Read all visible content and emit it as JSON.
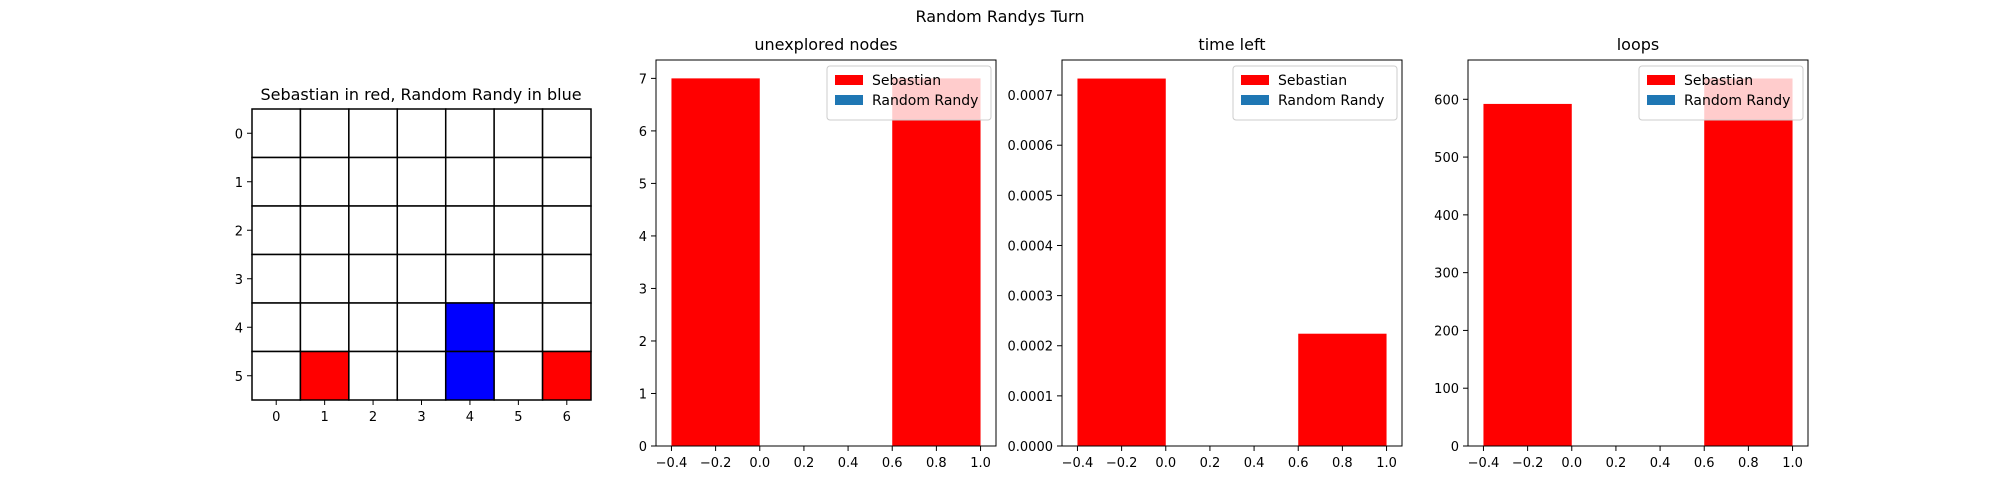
{
  "figure": {
    "suptitle": "Random Randys Turn"
  },
  "board": {
    "title": "Sebastian in red, Random Randy in blue",
    "rows": 6,
    "cols": 7,
    "x_ticks": [
      "0",
      "1",
      "2",
      "3",
      "4",
      "5",
      "6"
    ],
    "y_ticks": [
      "0",
      "1",
      "2",
      "3",
      "4",
      "5"
    ],
    "player_colors": {
      "sebastian": "#ff0000",
      "random_randy": "#0000ff",
      "empty": "#ffffff"
    },
    "cells": [
      {
        "row": 5,
        "col": 1,
        "player": "sebastian"
      },
      {
        "row": 4,
        "col": 4,
        "player": "random_randy"
      },
      {
        "row": 5,
        "col": 4,
        "player": "random_randy"
      },
      {
        "row": 5,
        "col": 6,
        "player": "sebastian"
      }
    ]
  },
  "chart_data": [
    {
      "type": "bar",
      "title": "unexplored nodes",
      "series": [
        {
          "name": "Sebastian",
          "color": "#ff0000",
          "bars": [
            {
              "x": -0.4,
              "width": 0.4,
              "value": 7
            },
            {
              "x": 0.6,
              "width": 0.4,
              "value": 7
            }
          ]
        },
        {
          "name": "Random Randy",
          "color": "#1f77b4",
          "bars": []
        }
      ],
      "xlim": [
        -0.47,
        1.07
      ],
      "ylim": [
        0,
        7.35
      ],
      "xticks": [
        "−0.4",
        "−0.2",
        "0.0",
        "0.2",
        "0.4",
        "0.6",
        "0.8",
        "1.0"
      ],
      "xtick_values": [
        -0.4,
        -0.2,
        0.0,
        0.2,
        0.4,
        0.6,
        0.8,
        1.0
      ],
      "yticks": [
        "0",
        "1",
        "2",
        "3",
        "4",
        "5",
        "6",
        "7"
      ],
      "ytick_values": [
        0,
        1,
        2,
        3,
        4,
        5,
        6,
        7
      ],
      "legend": "top-right"
    },
    {
      "type": "bar",
      "title": "time left",
      "series": [
        {
          "name": "Sebastian",
          "color": "#ff0000",
          "bars": [
            {
              "x": -0.4,
              "width": 0.4,
              "value": 0.000733
            },
            {
              "x": 0.6,
              "width": 0.4,
              "value": 0.000224
            }
          ]
        },
        {
          "name": "Random Randy",
          "color": "#1f77b4",
          "bars": []
        }
      ],
      "xlim": [
        -0.47,
        1.07
      ],
      "ylim": [
        0,
        0.00077
      ],
      "xticks": [
        "−0.4",
        "−0.2",
        "0.0",
        "0.2",
        "0.4",
        "0.6",
        "0.8",
        "1.0"
      ],
      "xtick_values": [
        -0.4,
        -0.2,
        0.0,
        0.2,
        0.4,
        0.6,
        0.8,
        1.0
      ],
      "yticks": [
        "0.0000",
        "0.0001",
        "0.0002",
        "0.0003",
        "0.0004",
        "0.0005",
        "0.0006",
        "0.0007"
      ],
      "ytick_values": [
        0,
        0.0001,
        0.0002,
        0.0003,
        0.0004,
        0.0005,
        0.0006,
        0.0007
      ],
      "legend": "top-right"
    },
    {
      "type": "bar",
      "title": "loops",
      "series": [
        {
          "name": "Sebastian",
          "color": "#ff0000",
          "bars": [
            {
              "x": -0.4,
              "width": 0.4,
              "value": 592
            },
            {
              "x": 0.6,
              "width": 0.4,
              "value": 636
            }
          ]
        },
        {
          "name": "Random Randy",
          "color": "#1f77b4",
          "bars": []
        }
      ],
      "xlim": [
        -0.47,
        1.07
      ],
      "ylim": [
        0,
        668
      ],
      "xticks": [
        "−0.4",
        "−0.2",
        "0.0",
        "0.2",
        "0.4",
        "0.6",
        "0.8",
        "1.0"
      ],
      "xtick_values": [
        -0.4,
        -0.2,
        0.0,
        0.2,
        0.4,
        0.6,
        0.8,
        1.0
      ],
      "yticks": [
        "0",
        "100",
        "200",
        "300",
        "400",
        "500",
        "600"
      ],
      "ytick_values": [
        0,
        100,
        200,
        300,
        400,
        500,
        600
      ],
      "legend": "top-right"
    }
  ]
}
